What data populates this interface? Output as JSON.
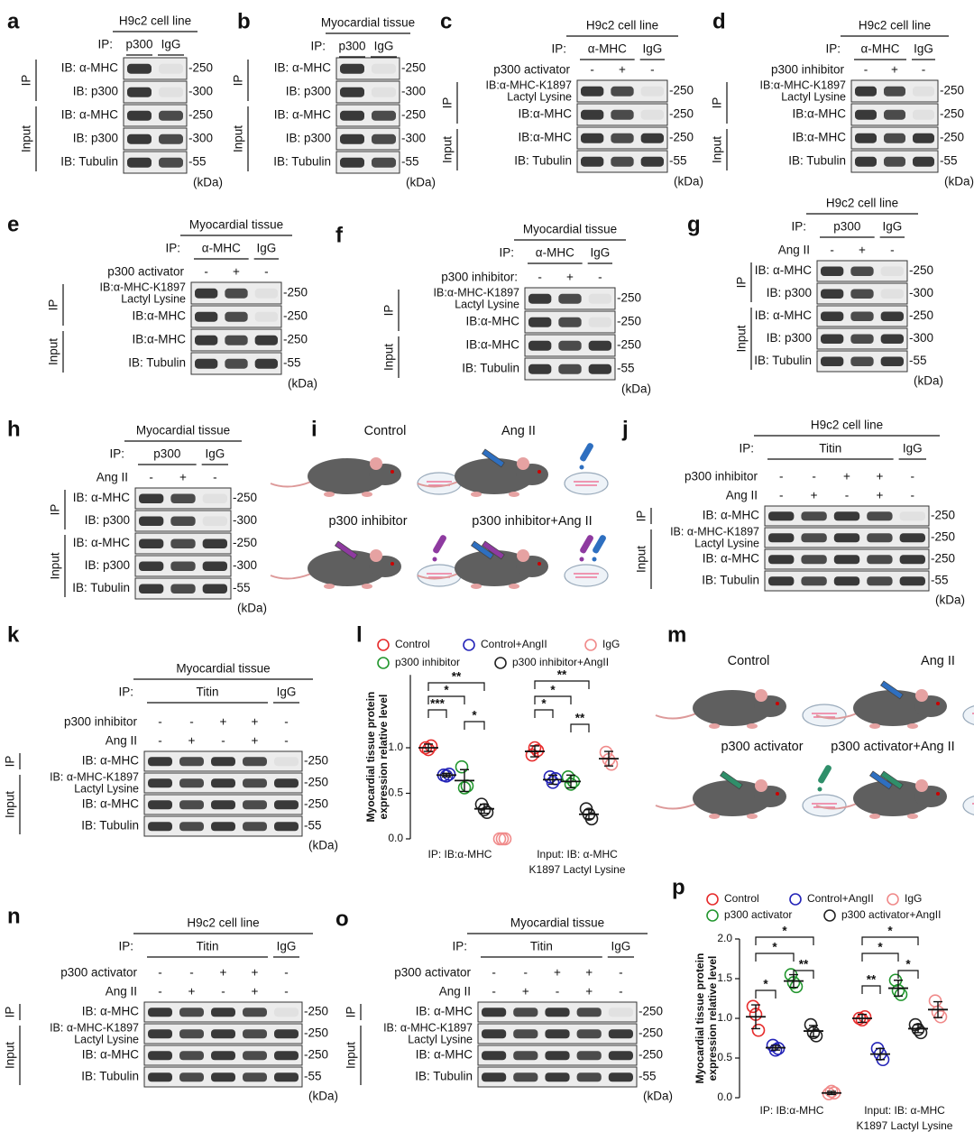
{
  "panels": [
    {
      "letter": "a",
      "header": "H9c2 cell line",
      "ip_label": "IP:",
      "ip_groups": [
        "p300",
        "IgG"
      ],
      "sections": [
        {
          "label": "IP",
          "rows": [
            {
              "label": "IB: α-MHC",
              "mw": "-250"
            },
            {
              "label": "IB: p300",
              "mw": "-300"
            }
          ]
        },
        {
          "label": "Input",
          "rows": [
            {
              "label": "IB: α-MHC",
              "mw": "-250"
            },
            {
              "label": "IB: p300",
              "mw": "-300"
            },
            {
              "label": "IB: Tubulin",
              "mw": "-55"
            }
          ]
        }
      ],
      "kda": "(kDa)"
    },
    {
      "letter": "b",
      "header": "Myocardial tissue",
      "ip_label": "IP:",
      "ip_groups": [
        "p300",
        "IgG"
      ],
      "sections": [
        {
          "label": "IP",
          "rows": [
            {
              "label": "IB: α-MHC",
              "mw": "-250"
            },
            {
              "label": "IB: p300",
              "mw": "-300"
            }
          ]
        },
        {
          "label": "Input",
          "rows": [
            {
              "label": "IB: α-MHC",
              "mw": "-250"
            },
            {
              "label": "IB: p300",
              "mw": "-300"
            },
            {
              "label": "IB: Tubulin",
              "mw": "-55"
            }
          ]
        }
      ],
      "kda": "(kDa)"
    },
    {
      "letter": "c",
      "header": "H9c2 cell line",
      "ip_label": "IP:",
      "ip_groups": [
        "α-MHC",
        "IgG"
      ],
      "conditions": [
        {
          "label": "p300 activator",
          "marks": [
            "-",
            "+",
            "-"
          ]
        }
      ],
      "sections": [
        {
          "label": "IP",
          "rows": [
            {
              "label": [
                "IB:α-MHC-K1897",
                "Lactyl Lysine"
              ],
              "mw": "-250"
            },
            {
              "label": "IB:α-MHC",
              "mw": "-250"
            }
          ]
        },
        {
          "label": "Input",
          "rows": [
            {
              "label": "IB:α-MHC",
              "mw": "-250"
            },
            {
              "label": "IB: Tubulin",
              "mw": "-55"
            }
          ]
        }
      ],
      "kda": "(kDa)"
    },
    {
      "letter": "d",
      "header": "H9c2 cell line",
      "ip_label": "IP:",
      "ip_groups": [
        "α-MHC",
        "IgG"
      ],
      "conditions": [
        {
          "label": "p300 inhibitor",
          "marks": [
            "-",
            "+",
            "-"
          ]
        }
      ],
      "sections": [
        {
          "label": "IP",
          "rows": [
            {
              "label": [
                "IB:α-MHC-K1897",
                "Lactyl Lysine"
              ],
              "mw": "-250"
            },
            {
              "label": "IB:α-MHC",
              "mw": "-250"
            }
          ]
        },
        {
          "label": "Input",
          "rows": [
            {
              "label": "IB:α-MHC",
              "mw": "-250"
            },
            {
              "label": "IB: Tubulin",
              "mw": "-55"
            }
          ]
        }
      ],
      "kda": "(kDa)"
    },
    {
      "letter": "e",
      "header": "Myocardial tissue",
      "ip_label": "IP:",
      "ip_groups": [
        "α-MHC",
        "IgG"
      ],
      "conditions": [
        {
          "label": "p300 activator",
          "marks": [
            "-",
            "+",
            "-"
          ]
        }
      ],
      "sections": [
        {
          "label": "IP",
          "rows": [
            {
              "label": [
                "IB:α-MHC-K1897",
                "Lactyl Lysine"
              ],
              "mw": "-250"
            },
            {
              "label": "IB:α-MHC",
              "mw": "-250"
            }
          ]
        },
        {
          "label": "Input",
          "rows": [
            {
              "label": "IB:α-MHC",
              "mw": "-250"
            },
            {
              "label": "IB: Tubulin",
              "mw": "-55"
            }
          ]
        }
      ],
      "kda": "(kDa)"
    },
    {
      "letter": "f",
      "header": "Myocardial tissue",
      "ip_label": "IP:",
      "ip_groups": [
        "α-MHC",
        "IgG"
      ],
      "conditions": [
        {
          "label": "p300 inhibitor:",
          "marks": [
            "-",
            "+",
            "-"
          ]
        }
      ],
      "sections": [
        {
          "label": "IP",
          "rows": [
            {
              "label": [
                "IB:α-MHC-K1897",
                "Lactyl Lysine"
              ],
              "mw": "-250"
            },
            {
              "label": "IB:α-MHC",
              "mw": "-250"
            }
          ]
        },
        {
          "label": "Input",
          "rows": [
            {
              "label": "IB:α-MHC",
              "mw": "-250"
            },
            {
              "label": "IB: Tubulin",
              "mw": "-55"
            }
          ]
        }
      ],
      "kda": "(kDa)"
    },
    {
      "letter": "g",
      "header": "H9c2 cell line",
      "ip_label": "IP:",
      "ip_groups": [
        "p300",
        "IgG"
      ],
      "conditions": [
        {
          "label": "Ang II",
          "marks": [
            "-",
            "+",
            "-"
          ]
        }
      ],
      "sections": [
        {
          "label": "IP",
          "rows": [
            {
              "label": "IB: α-MHC",
              "mw": "-250"
            },
            {
              "label": "IB: p300",
              "mw": "-300"
            }
          ]
        },
        {
          "label": "Input",
          "rows": [
            {
              "label": "IB: α-MHC",
              "mw": "-250"
            },
            {
              "label": "IB: p300",
              "mw": "-300"
            },
            {
              "label": "IB: Tubulin",
              "mw": "-55"
            }
          ]
        }
      ],
      "kda": "(kDa)"
    },
    {
      "letter": "h",
      "header": "Myocardial tissue",
      "ip_label": "IP:",
      "ip_groups": [
        "p300",
        "IgG"
      ],
      "conditions": [
        {
          "label": "Ang II",
          "marks": [
            "-",
            "+",
            "-"
          ]
        }
      ],
      "sections": [
        {
          "label": "IP",
          "rows": [
            {
              "label": "IB: α-MHC",
              "mw": "-250"
            },
            {
              "label": "IB: p300",
              "mw": "-300"
            }
          ]
        },
        {
          "label": "Input",
          "rows": [
            {
              "label": "IB: α-MHC",
              "mw": "-250"
            },
            {
              "label": "IB: p300",
              "mw": "-300"
            },
            {
              "label": "IB: Tubulin",
              "mw": "-55"
            }
          ]
        }
      ],
      "kda": "(kDa)"
    },
    {
      "letter": "i",
      "scenes": [
        "Control",
        "Ang II",
        "p300  inhibitor",
        "p300  inhibitor+Ang II"
      ]
    },
    {
      "letter": "j",
      "header": "H9c2 cell line",
      "ip_label": "IP:",
      "ip_groups": [
        "Titin",
        "IgG"
      ],
      "conditions": [
        {
          "label": "p300 inhibitor",
          "marks": [
            "-",
            "-",
            "+",
            "+",
            "-"
          ]
        },
        {
          "label": "Ang II",
          "marks": [
            "-",
            "+",
            "-",
            "+",
            "-"
          ]
        }
      ],
      "sections": [
        {
          "label": "IP",
          "rows": [
            {
              "label": "IB: α-MHC",
              "mw": "-250"
            }
          ]
        },
        {
          "label": "Input",
          "rows": [
            {
              "label": [
                "IB: α-MHC-K1897",
                "Lactyl Lysine"
              ],
              "mw": "-250"
            },
            {
              "label": "IB: α-MHC",
              "mw": "-250"
            },
            {
              "label": "IB: Tubulin",
              "mw": "-55"
            }
          ]
        }
      ],
      "kda": "(kDa)"
    },
    {
      "letter": "k",
      "header": "Myocardial tissue",
      "ip_label": "IP:",
      "ip_groups": [
        "Titin",
        "IgG"
      ],
      "conditions": [
        {
          "label": "p300 inhibitor",
          "marks": [
            "-",
            "-",
            "+",
            "+",
            "-"
          ]
        },
        {
          "label": "Ang II",
          "marks": [
            "-",
            "+",
            "-",
            "+",
            "-"
          ]
        }
      ],
      "sections": [
        {
          "label": "IP",
          "rows": [
            {
              "label": "IB: α-MHC",
              "mw": "-250"
            }
          ]
        },
        {
          "label": "Input",
          "rows": [
            {
              "label": [
                "IB: α-MHC-K1897",
                "Lactyl Lysine"
              ],
              "mw": "-250"
            },
            {
              "label": "IB: α-MHC",
              "mw": "-250"
            },
            {
              "label": "IB: Tubulin",
              "mw": "-55"
            }
          ]
        }
      ],
      "kda": "(kDa)"
    },
    {
      "letter": "l",
      "chart": {
        "type": "dot",
        "y_label": [
          "Myocardial tissue protein",
          "expression relative level"
        ],
        "ylim": [
          0,
          1.8
        ],
        "yticks": [
          {
            "value": 0,
            "label": "0.0"
          },
          {
            "value": 0.5,
            "label": "0.5"
          },
          {
            "value": 1,
            "label": "1.0"
          }
        ],
        "groups": [
          [
            "IP: IB:α-MHC"
          ],
          [
            "Input: IB: α-MHC",
            "K1897 Lactyl Lysine"
          ]
        ],
        "series": [
          {
            "name": "Control",
            "color": "#e62b2b",
            "values": [
              [
                1.0,
                0.98,
                1.02
              ],
              [
                0.92,
                1.0,
                0.97
              ]
            ],
            "means": [
              1.0,
              0.96
            ],
            "errors": [
              0.04,
              0.06
            ]
          },
          {
            "name": "Control+AngII",
            "color": "#2424b8",
            "values": [
              [
                0.7,
                0.69,
                0.71
              ],
              [
                0.68,
                0.62,
                0.66
              ]
            ],
            "means": [
              0.7,
              0.65
            ],
            "errors": [
              0.02,
              0.05
            ]
          },
          {
            "name": "p300 inhibitor",
            "color": "#22962e",
            "values": [
              [
                0.79,
                0.56,
                0.58
              ],
              [
                0.68,
                0.6,
                0.63
              ]
            ],
            "means": [
              0.64,
              0.63
            ],
            "errors": [
              0.12,
              0.07
            ]
          },
          {
            "name": "p300 inhibitor+AngII",
            "color": "#222222",
            "values": [
              [
                0.38,
                0.32,
                0.29
              ],
              [
                0.33,
                0.27,
                0.22
              ]
            ],
            "means": [
              0.33,
              0.27
            ],
            "errors": [
              0.05,
              0.05
            ]
          },
          {
            "name": "IgG",
            "color": "#f08a8a",
            "values": [
              [
                0.0,
                0.0,
                0.0
              ],
              [
                0.95,
                0.87,
                0.82
              ]
            ],
            "means": [
              null,
              0.88
            ],
            "errors": [
              null,
              0.08
            ]
          }
        ],
        "significance": [
          [
            "***",
            "*",
            "**",
            "*"
          ],
          [
            "*",
            "*",
            "**",
            "**"
          ]
        ]
      }
    },
    {
      "letter": "m",
      "scenes": [
        "Control",
        "Ang II",
        "p300 activator",
        "p300 activator+Ang II"
      ]
    },
    {
      "letter": "n",
      "header": "H9c2 cell line",
      "ip_label": "IP:",
      "ip_groups": [
        "Titin",
        "IgG"
      ],
      "conditions": [
        {
          "label": "p300 activator",
          "marks": [
            "-",
            "-",
            "+",
            "+",
            "-"
          ]
        },
        {
          "label": "Ang II",
          "marks": [
            "-",
            "+",
            "-",
            "+",
            "-"
          ]
        }
      ],
      "sections": [
        {
          "label": "IP",
          "rows": [
            {
              "label": "IB: α-MHC",
              "mw": "-250"
            }
          ]
        },
        {
          "label": "Input",
          "rows": [
            {
              "label": [
                "IB: α-MHC-K1897",
                "Lactyl Lysine"
              ],
              "mw": "-250"
            },
            {
              "label": "IB: α-MHC",
              "mw": "-250"
            },
            {
              "label": "IB: Tubulin",
              "mw": "-55"
            }
          ]
        }
      ],
      "kda": "(kDa)"
    },
    {
      "letter": "o",
      "header": "Myocardial tissue",
      "ip_label": "IP:",
      "ip_groups": [
        "Titin",
        "IgG"
      ],
      "conditions": [
        {
          "label": "p300 activator",
          "marks": [
            "-",
            "-",
            "+",
            "+",
            "-"
          ]
        },
        {
          "label": "Ang II",
          "marks": [
            "-",
            "+",
            "-",
            "+",
            "-"
          ]
        }
      ],
      "sections": [
        {
          "label": "IP",
          "rows": [
            {
              "label": "IB: α-MHC",
              "mw": "-250"
            }
          ]
        },
        {
          "label": "Input",
          "rows": [
            {
              "label": [
                "IB: α-MHC-K1897",
                "Lactyl Lysine"
              ],
              "mw": "-250"
            },
            {
              "label": "IB: α-MHC",
              "mw": "-250"
            },
            {
              "label": "IB: Tubulin",
              "mw": "-55"
            }
          ]
        }
      ],
      "kda": "(kDa)"
    },
    {
      "letter": "p",
      "chart": {
        "type": "dot",
        "y_label": [
          "Myocardial tissue protein",
          "expression relative level"
        ],
        "ylim": [
          0,
          2
        ],
        "yticks": [
          {
            "value": 0,
            "label": "0.0"
          },
          {
            "value": 0.5,
            "label": "0.5"
          },
          {
            "value": 1,
            "label": "1.0"
          },
          {
            "value": 1.5,
            "label": "1.5"
          },
          {
            "value": 2,
            "label": "2.0"
          }
        ],
        "groups": [
          [
            "IP: IB:α-MHC"
          ],
          [
            "Input: IB: α-MHC",
            "K1897 Lactyl Lysine"
          ]
        ],
        "series": [
          {
            "name": "Control",
            "color": "#e62b2b",
            "values": [
              [
                1.15,
                1.05,
                0.85
              ],
              [
                1.0,
                0.98,
                1.02
              ]
            ],
            "means": [
              1.02,
              1.0
            ],
            "errors": [
              0.15,
              0.05
            ]
          },
          {
            "name": "Control+AngII",
            "color": "#2424b8",
            "values": [
              [
                0.66,
                0.6,
                0.62
              ],
              [
                0.62,
                0.55,
                0.48
              ]
            ],
            "means": [
              0.63,
              0.55
            ],
            "errors": [
              0.03,
              0.07
            ]
          },
          {
            "name": "p300 activator",
            "color": "#22962e",
            "values": [
              [
                1.55,
                1.45,
                1.4
              ],
              [
                1.48,
                1.35,
                1.3
              ]
            ],
            "means": [
              1.47,
              1.38
            ],
            "errors": [
              0.08,
              0.1
            ]
          },
          {
            "name": "p300 activator+AngII",
            "color": "#222222",
            "values": [
              [
                0.92,
                0.82,
                0.78
              ],
              [
                0.92,
                0.86,
                0.82
              ]
            ],
            "means": [
              0.84,
              0.87
            ],
            "errors": [
              0.07,
              0.05
            ]
          },
          {
            "name": "IgG",
            "color": "#f08a8a",
            "values": [
              [
                0.05,
                0.08,
                0.06
              ],
              [
                1.22,
                1.08,
                1.02
              ]
            ],
            "means": [
              0.06,
              1.11
            ],
            "errors": [
              0.02,
              0.1
            ]
          }
        ],
        "significance": [
          [
            "*",
            "*",
            "**",
            "*"
          ],
          [
            "**",
            "*",
            "*",
            "*"
          ]
        ]
      }
    }
  ]
}
